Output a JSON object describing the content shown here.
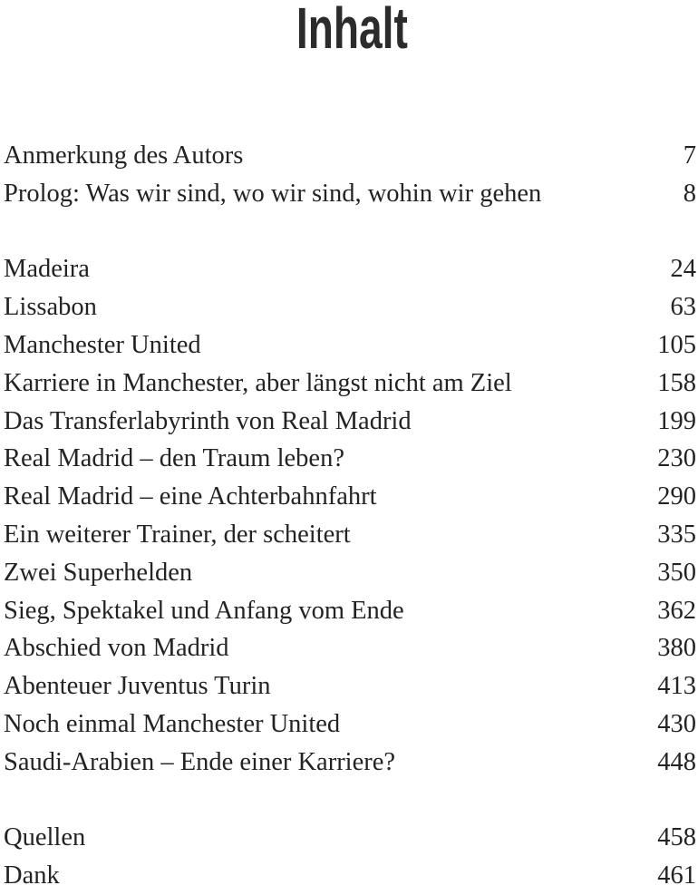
{
  "header": {
    "title": "Inhalt"
  },
  "toc": {
    "groups": [
      {
        "entries": [
          {
            "title": "Anmerkung des Autors",
            "page": 7
          },
          {
            "title": "Prolog: Was wir sind, wo wir sind, wohin wir gehen",
            "page": 8
          }
        ]
      },
      {
        "entries": [
          {
            "title": "Madeira",
            "page": 24
          },
          {
            "title": "Lissabon",
            "page": 63
          },
          {
            "title": "Manchester United",
            "page": 105
          },
          {
            "title": "Karriere in Manchester, aber längst nicht am Ziel",
            "page": 158
          },
          {
            "title": "Das Transferlabyrinth von Real Madrid",
            "page": 199
          },
          {
            "title": "Real Madrid – den Traum leben?",
            "page": 230
          },
          {
            "title": "Real Madrid – eine Achterbahnfahrt",
            "page": 290
          },
          {
            "title": "Ein weiterer Trainer, der scheitert",
            "page": 335
          },
          {
            "title": "Zwei Superhelden",
            "page": 350
          },
          {
            "title": "Sieg, Spektakel und Anfang vom Ende",
            "page": 362
          },
          {
            "title": "Abschied von Madrid",
            "page": 380
          },
          {
            "title": "Abenteuer Juventus Turin",
            "page": 413
          },
          {
            "title": "Noch einmal Manchester United",
            "page": 430
          },
          {
            "title": "Saudi-Arabien – Ende einer Karriere?",
            "page": 448
          }
        ]
      },
      {
        "entries": [
          {
            "title": "Quellen",
            "page": 458
          },
          {
            "title": "Dank",
            "page": 461
          }
        ]
      }
    ]
  }
}
